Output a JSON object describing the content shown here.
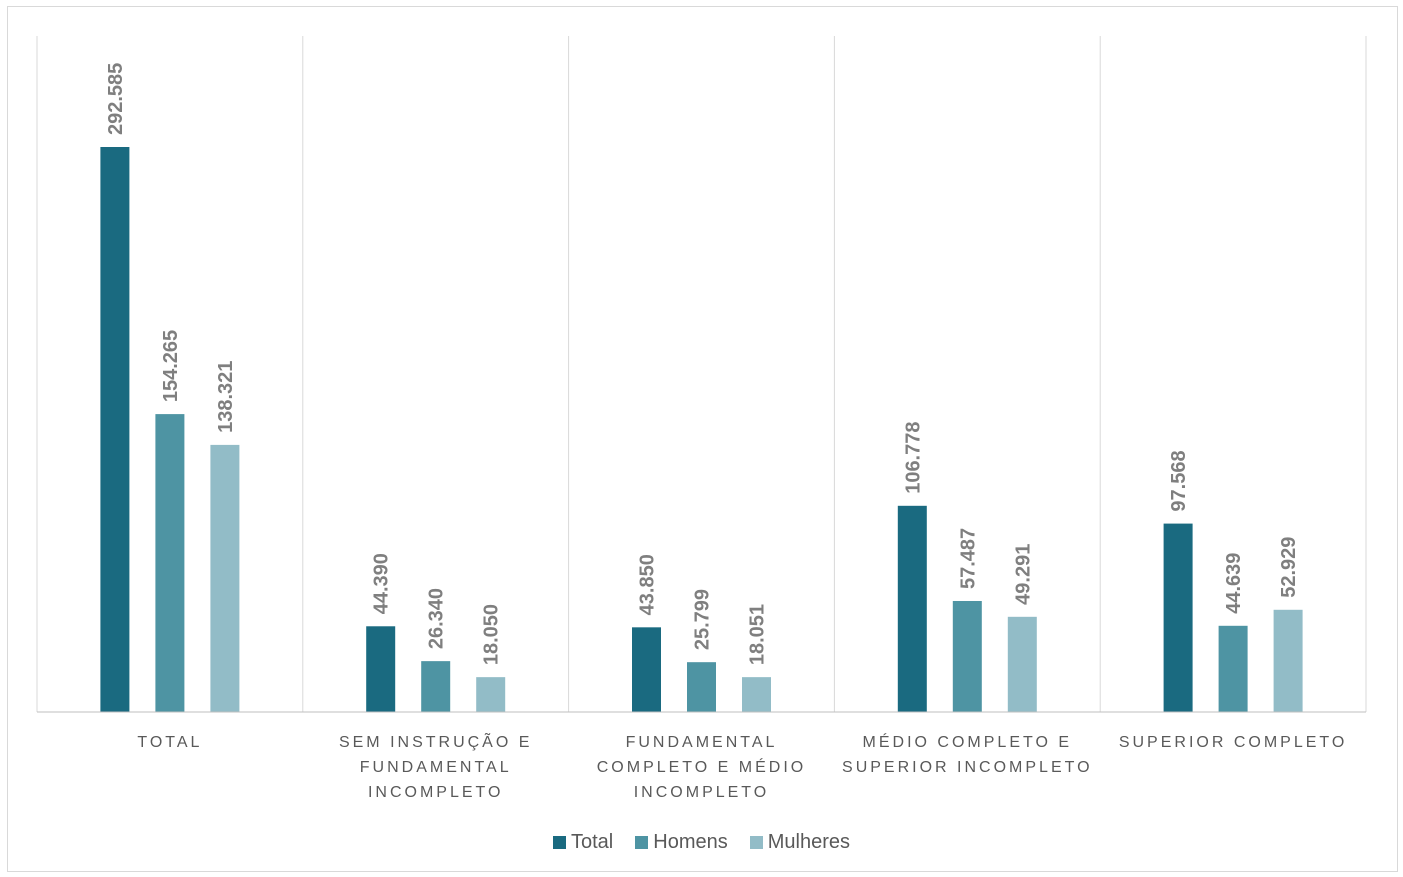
{
  "chart_data": {
    "type": "bar",
    "title": "",
    "xlabel": "",
    "ylabel": "",
    "ylim": [
      0,
      350000
    ],
    "grid": "vertical separators between categories",
    "legend_position": "bottom",
    "categories": [
      "TOTAL",
      "SEM INSTRUÇÃO E FUNDAMENTAL INCOMPLETO",
      "FUNDAMENTAL COMPLETO E MÉDIO INCOMPLETO",
      "MÉDIO COMPLETO E SUPERIOR INCOMPLETO",
      "SUPERIOR COMPLETO"
    ],
    "series": [
      {
        "name": "Total",
        "color": "#1a6a80",
        "values": [
          292585,
          44390,
          43850,
          106778,
          97568
        ],
        "labels": [
          "292.585",
          "44.390",
          "43.850",
          "106.778",
          "97.568"
        ]
      },
      {
        "name": "Homens",
        "color": "#4e94a3",
        "values": [
          154265,
          26340,
          25799,
          57487,
          44639
        ],
        "labels": [
          "154.265",
          "26.340",
          "25.799",
          "57.487",
          "44.639"
        ]
      },
      {
        "name": "Mulheres",
        "color": "#92bcc7",
        "values": [
          138321,
          18050,
          18051,
          49291,
          52929
        ],
        "labels": [
          "138.321",
          "18.050",
          "18.051",
          "49.291",
          "52.929"
        ]
      }
    ]
  }
}
